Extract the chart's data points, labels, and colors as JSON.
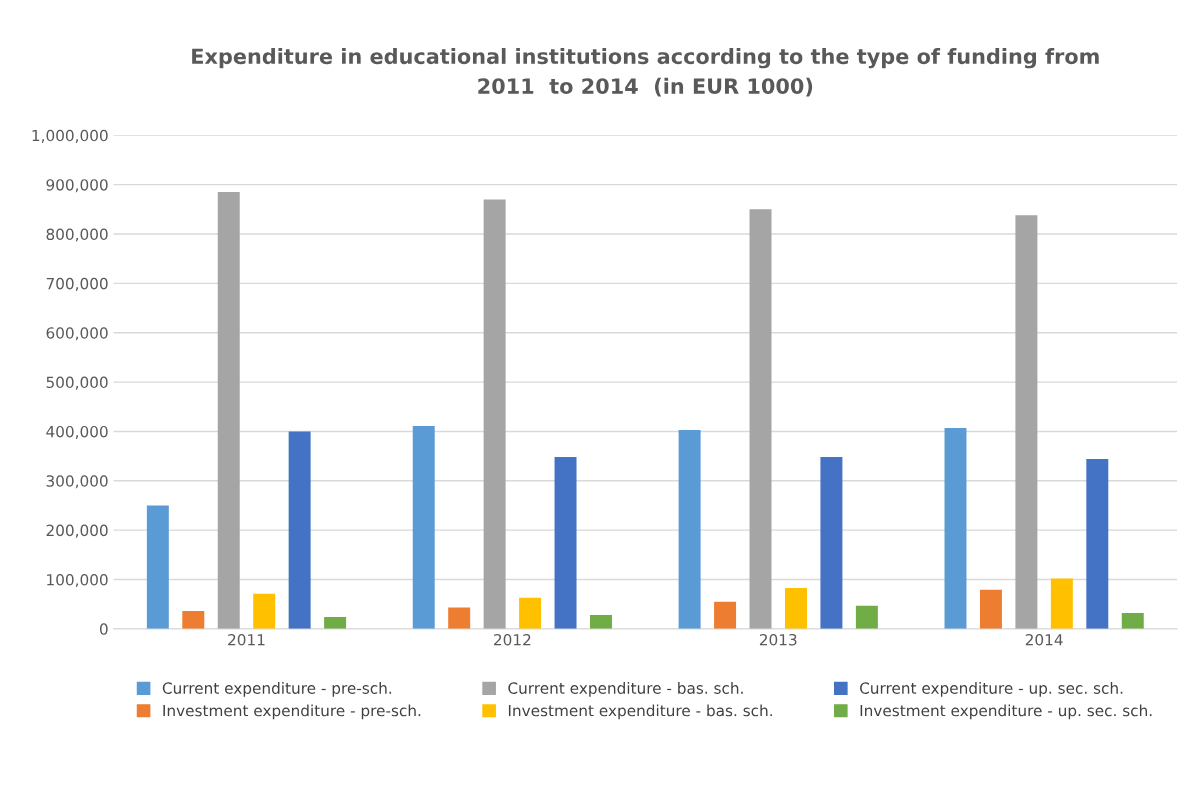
{
  "chart_data": {
    "type": "bar",
    "title": "Expenditure in educational institutions according to the type of funding from\n2011  to 2014  (in EUR 1000)",
    "categories": [
      "2011",
      "2012",
      "2013",
      "2014"
    ],
    "series": [
      {
        "name": "Current expenditure - pre-sch.",
        "color": "#5b9bd5",
        "values": [
          250000,
          411000,
          403000,
          407000
        ]
      },
      {
        "name": "Investment expenditure - pre-sch.",
        "color": "#ed7d31",
        "values": [
          36000,
          43000,
          55000,
          79000
        ]
      },
      {
        "name": "Current expenditure - bas. sch.",
        "color": "#a5a5a5",
        "values": [
          885000,
          870000,
          850000,
          838000
        ]
      },
      {
        "name": "Investment expenditure - bas. sch.",
        "color": "#ffc000",
        "values": [
          71000,
          63000,
          83000,
          102000
        ]
      },
      {
        "name": "Current expenditure - up. sec. sch.",
        "color": "#4472c4",
        "values": [
          400000,
          348000,
          348000,
          344000
        ]
      },
      {
        "name": "Investment expenditure - up. sec. sch.",
        "color": "#70ad47",
        "values": [
          24000,
          28000,
          47000,
          32000
        ]
      }
    ],
    "ylim": [
      0,
      1000000
    ],
    "yticks": [
      0,
      {
        "value": 100000,
        "label": "100,000"
      },
      {
        "value": 200000,
        "label": "200,000"
      },
      {
        "value": 300000,
        "label": "300,000"
      },
      {
        "value": 400000,
        "label": "400,000"
      },
      {
        "value": 500000,
        "label": "500,000"
      },
      {
        "value": 600000,
        "label": "600,000"
      },
      {
        "value": 700000,
        "label": "700,000"
      },
      {
        "value": 800000,
        "label": "800,000"
      },
      {
        "value": 900000,
        "label": "900,000"
      },
      {
        "value": 1000000,
        "label": "1,000,000"
      }
    ],
    "grid": "y",
    "legend": "bottom"
  }
}
